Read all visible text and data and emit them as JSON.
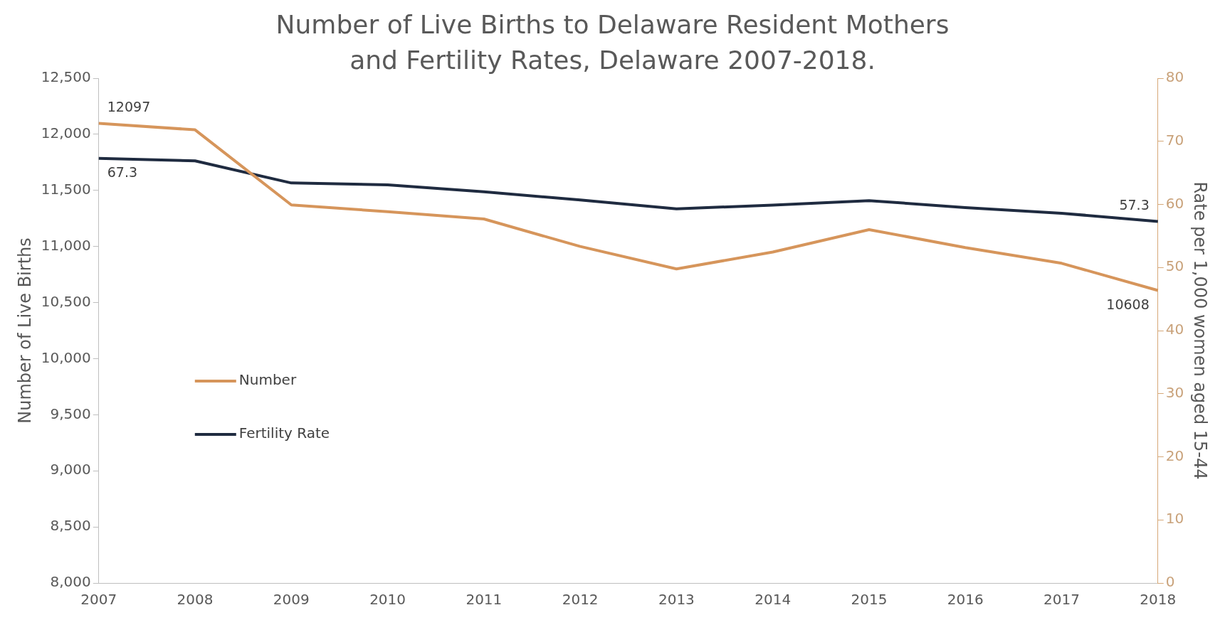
{
  "chart_data": {
    "type": "line",
    "title": "Number of Live Births to Delaware Resident Mothers and Fertility Rates, Delaware 2007-2018.",
    "ylabel": "Number of Live Births",
    "y2label": "Rate per 1,000 women aged 15-44",
    "categories": [
      "2007",
      "2008",
      "2009",
      "2010",
      "2011",
      "2012",
      "2013",
      "2014",
      "2015",
      "2016",
      "2017",
      "2018"
    ],
    "series": [
      {
        "name": "Number",
        "color": "#d6955b",
        "values": [
          12097,
          12040,
          11370,
          11310,
          11245,
          11000,
          10800,
          10950,
          11150,
          10990,
          10850,
          10608
        ],
        "value_labels": [
          "12097",
          null,
          null,
          null,
          null,
          null,
          null,
          null,
          null,
          null,
          null,
          "10608"
        ]
      },
      {
        "name": "Fertility Rate",
        "color": "#1f2b40",
        "axis": "y2",
        "values": [
          67.3,
          66.9,
          63.4,
          63.1,
          62.0,
          60.7,
          59.3,
          59.9,
          60.6,
          59.5,
          58.6,
          57.3
        ],
        "value_labels": [
          "67.3",
          null,
          null,
          null,
          null,
          null,
          null,
          null,
          null,
          null,
          null,
          "57.3"
        ]
      }
    ],
    "ylim": [
      8000,
      12500
    ],
    "yticks": [
      {
        "value": 8000,
        "label": "8,000"
      },
      {
        "value": 8500,
        "label": "8,500"
      },
      {
        "value": 9000,
        "label": "9,000"
      },
      {
        "value": 9500,
        "label": "9,500"
      },
      {
        "value": 10000,
        "label": "10,000"
      },
      {
        "value": 10500,
        "label": "10,500"
      },
      {
        "value": 11000,
        "label": "11,000"
      },
      {
        "value": 11500,
        "label": "11,500"
      },
      {
        "value": 12000,
        "label": "12,000"
      },
      {
        "value": 12500,
        "label": "12,500"
      }
    ],
    "y2lim": [
      0,
      80
    ],
    "y2ticks": [
      0,
      10,
      20,
      30,
      40,
      50,
      60,
      70,
      80
    ],
    "grid": false,
    "legend": "left",
    "marker": "none",
    "line_style": "solid"
  }
}
